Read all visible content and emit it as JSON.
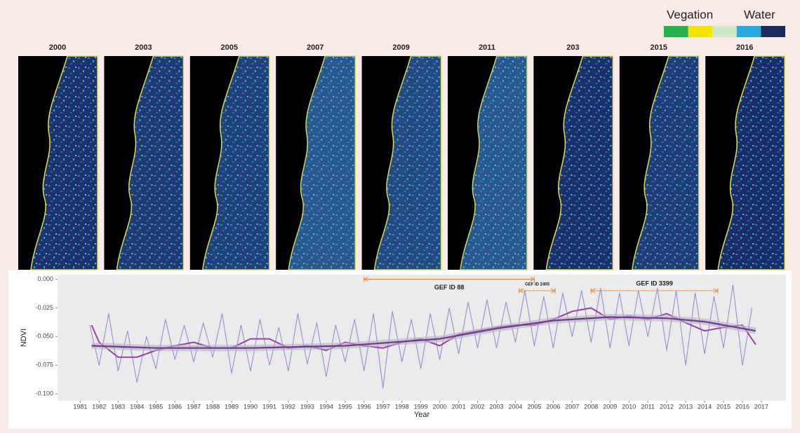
{
  "legend": {
    "labels": [
      "Vegation",
      "Water"
    ],
    "colors": [
      "#27b04b",
      "#f3e500",
      "#cfe8c8",
      "#2aa8e0",
      "#1c2a5c"
    ]
  },
  "panel_labels": [
    "2000",
    "2003",
    "2005",
    "2007",
    "2009",
    "2011",
    "203",
    "2015",
    "2016"
  ],
  "chart_data": {
    "type": "line",
    "ylabel": "NDVI",
    "xlabel": "Year",
    "xlim": [
      1979.8,
      2018.3
    ],
    "ylim": [
      -0.106,
      0.004
    ],
    "xticks": [
      1981,
      1982,
      1983,
      1984,
      1985,
      1986,
      1987,
      1988,
      1989,
      1990,
      1991,
      1992,
      1993,
      1994,
      1995,
      1996,
      1997,
      1998,
      1999,
      2000,
      2001,
      2002,
      2003,
      2004,
      2005,
      2006,
      2007,
      2008,
      2009,
      2010,
      2011,
      2012,
      2013,
      2014,
      2015,
      2016,
      2017
    ],
    "yticks": [
      {
        "value": -0.1,
        "label": "-0.100"
      },
      {
        "value": -0.075,
        "label": "-0.075"
      },
      {
        "value": -0.05,
        "label": "-0.050"
      },
      {
        "value": -0.025,
        "label": "-0.025"
      },
      {
        "value": 0,
        "label": "0.000"
      }
    ],
    "series": [
      {
        "color": "#8c88d8",
        "x": [
          1981.5,
          1982,
          1982.5,
          1983,
          1983.5,
          1984,
          1984.5,
          1985,
          1985.5,
          1986,
          1986.5,
          1987,
          1987.5,
          1988,
          1988.5,
          1989,
          1989.5,
          1990,
          1990.5,
          1991,
          1991.5,
          1992,
          1992.5,
          1993,
          1993.5,
          1994,
          1994.5,
          1995,
          1995.5,
          1996,
          1996.5,
          1997,
          1997.5,
          1998,
          1998.5,
          1999,
          1999.5,
          2000,
          2000.5,
          2001,
          2001.5,
          2002,
          2002.5,
          2003,
          2003.5,
          2004,
          2004.5,
          2005,
          2005.5,
          2006,
          2006.5,
          2007,
          2007.5,
          2008,
          2008.5,
          2009,
          2009.5,
          2010,
          2010.5,
          2011,
          2011.5,
          2012,
          2012.5,
          2013,
          2013.5,
          2014,
          2014.5,
          2015,
          2015.5,
          2016,
          2016.5
        ],
        "values": [
          -0.04,
          -0.075,
          -0.03,
          -0.08,
          -0.045,
          -0.09,
          -0.05,
          -0.078,
          -0.035,
          -0.07,
          -0.04,
          -0.072,
          -0.038,
          -0.068,
          -0.03,
          -0.082,
          -0.04,
          -0.08,
          -0.035,
          -0.075,
          -0.042,
          -0.08,
          -0.03,
          -0.074,
          -0.038,
          -0.085,
          -0.04,
          -0.072,
          -0.035,
          -0.08,
          -0.03,
          -0.095,
          -0.028,
          -0.072,
          -0.035,
          -0.078,
          -0.03,
          -0.07,
          -0.025,
          -0.065,
          -0.02,
          -0.06,
          -0.018,
          -0.06,
          -0.02,
          -0.055,
          -0.01,
          -0.058,
          -0.015,
          -0.06,
          -0.012,
          -0.05,
          -0.01,
          -0.055,
          -0.008,
          -0.06,
          -0.012,
          -0.058,
          -0.01,
          -0.05,
          -0.008,
          -0.062,
          -0.01,
          -0.075,
          -0.012,
          -0.065,
          -0.015,
          -0.06,
          -0.005,
          -0.075,
          -0.025
        ]
      },
      {
        "color": "#9c3fa6",
        "x": [
          1981.6,
          1982,
          1983,
          1984,
          1985,
          1986,
          1987,
          1988,
          1989,
          1990,
          1991,
          1992,
          1993,
          1994,
          1995,
          1996,
          1997,
          1998,
          1999,
          2000,
          2001,
          2002,
          2003,
          2004,
          2005,
          2006,
          2007,
          2008,
          2009,
          2010,
          2011,
          2012,
          2013,
          2014,
          2015,
          2016,
          2016.7
        ],
        "values": [
          -0.04,
          -0.055,
          -0.068,
          -0.068,
          -0.062,
          -0.058,
          -0.055,
          -0.06,
          -0.06,
          -0.052,
          -0.052,
          -0.06,
          -0.058,
          -0.062,
          -0.055,
          -0.058,
          -0.06,
          -0.055,
          -0.052,
          -0.058,
          -0.048,
          -0.045,
          -0.042,
          -0.04,
          -0.04,
          -0.035,
          -0.028,
          -0.025,
          -0.035,
          -0.032,
          -0.035,
          -0.03,
          -0.038,
          -0.045,
          -0.042,
          -0.04,
          -0.057
        ]
      },
      {
        "color": "#6f3a8e",
        "x": [
          1981.6,
          1985,
          1990,
          1995,
          2000,
          2003,
          2006,
          2009,
          2012,
          2014,
          2016.7
        ],
        "values": [
          -0.058,
          -0.06,
          -0.06,
          -0.058,
          -0.052,
          -0.043,
          -0.036,
          -0.033,
          -0.034,
          -0.037,
          -0.045
        ]
      }
    ],
    "annotations": [
      {
        "text": "GEF ID 88",
        "x": [
          1996,
          2005
        ],
        "y": 0
      },
      {
        "text": "GEF ID 2405",
        "x": [
          2004.2,
          2006.1
        ],
        "y": -0.01
      },
      {
        "text": "GEF ID 3399",
        "x": [
          2008,
          2014.7
        ],
        "y": -0.01
      }
    ]
  }
}
